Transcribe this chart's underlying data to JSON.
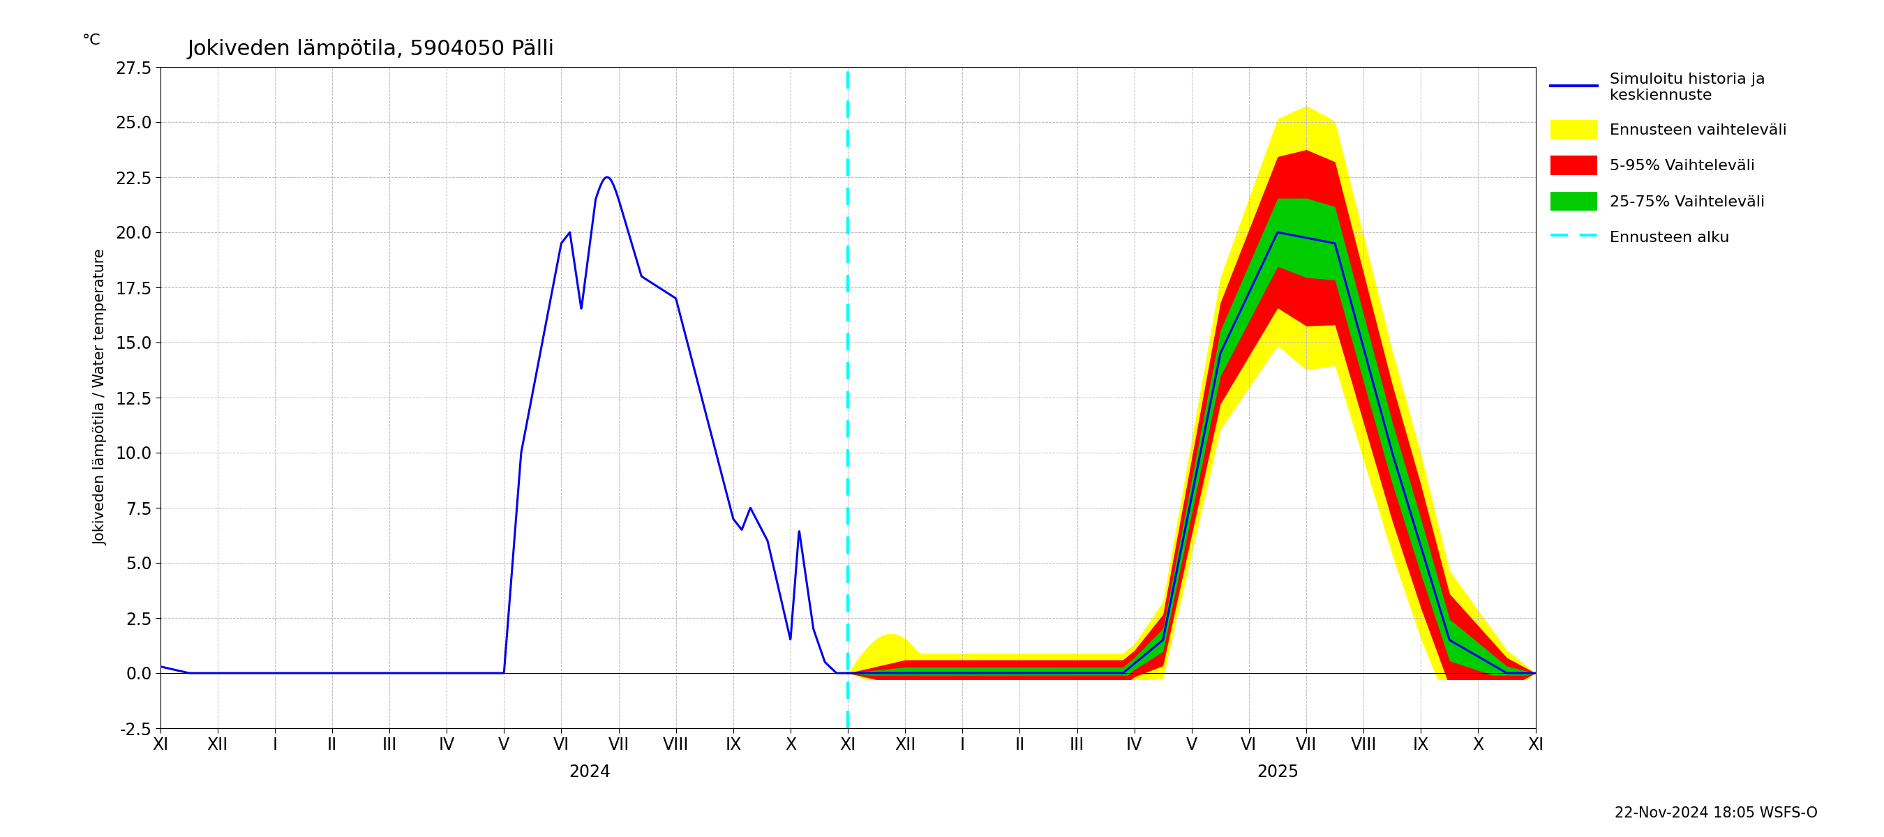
{
  "title": "Jokiveden lämpötila, 5904050 Pälli",
  "ylabel_fi": "Jokiveden lämpötila / Water temperature",
  "ylabel_unit": "°C",
  "ylim": [
    -2.5,
    27.5
  ],
  "yticks": [
    -2.5,
    0.0,
    2.5,
    5.0,
    7.5,
    10.0,
    12.5,
    15.0,
    17.5,
    20.0,
    22.5,
    25.0,
    27.5
  ],
  "footnote": "22-Nov-2024 18:05 WSFS-O",
  "colors": {
    "blue": "#0000ee",
    "yellow": "#ffff00",
    "red": "#ff0000",
    "green": "#00cc00",
    "cyan": "#00ffff",
    "background": "#ffffff",
    "grid": "#bbbbbb"
  },
  "legend_labels": [
    "Simuloitu historia ja\nkeskiennuste",
    "Ennusteen vaihteleväli",
    "5-95% Vaihteleväli",
    "25-75% Vaihteleväli",
    "Ennusteen alku"
  ]
}
